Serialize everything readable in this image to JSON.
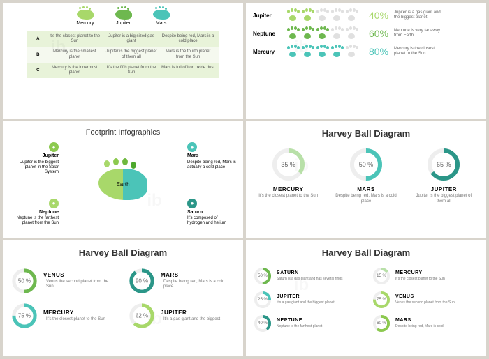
{
  "colors": {
    "green1": "#a8d86a",
    "green2": "#6eb84f",
    "teal": "#4bc4b8",
    "gray": "#d0d0d0"
  },
  "s1": {
    "planets": [
      "Mercury",
      "Jupiter",
      "Mars"
    ],
    "colors": [
      "#a8d86a",
      "#6eb84f",
      "#4bc4b8"
    ],
    "rows": [
      {
        "label": "A",
        "cells": [
          "It's the closest planet to the Sun",
          "Jupiter is a big sized gas giant",
          "Despite being red, Mars is a cold place"
        ]
      },
      {
        "label": "B",
        "cells": [
          "Mercury is the smallest planet",
          "Jupiter is the biggest planet of them all",
          "Mars is the fourth planet from the Sun"
        ]
      },
      {
        "label": "C",
        "cells": [
          "Mercury is the innermost planet",
          "It's the fifth planet from the Sun",
          "Mars is full of iron oxide dust"
        ]
      }
    ]
  },
  "s2": {
    "rows": [
      {
        "name": "Jupiter",
        "pct": 40,
        "pctText": "40%",
        "color": "#a8d86a",
        "desc": "Jupiter is a gas giant and the biggest planet"
      },
      {
        "name": "Neptune",
        "pct": 60,
        "pctText": "60%",
        "color": "#6eb84f",
        "desc": "Neptune is very far away from Earth"
      },
      {
        "name": "Mercury",
        "pct": 80,
        "pctText": "80%",
        "color": "#4bc4b8",
        "desc": "Mercury is the closest planet to the Sun"
      }
    ]
  },
  "s3": {
    "title": "Footprint Infographics",
    "center": "Earth",
    "bg1": "#a8d86a",
    "bg2": "#4bc4b8",
    "callouts": [
      {
        "name": "Jupiter",
        "desc": "Jupiter is the biggest planet in the Solar System",
        "color": "#8cc94f",
        "pos": "tl"
      },
      {
        "name": "Mars",
        "desc": "Despite being red, Mars is actually a cold place",
        "color": "#4bc4b8",
        "pos": "tr"
      },
      {
        "name": "Neptune",
        "desc": "Neptune is the farthest planet from the Sun",
        "color": "#a8d86a",
        "pos": "bl"
      },
      {
        "name": "Saturn",
        "desc": "It's composed of hydrogen and helium",
        "color": "#2b9688",
        "pos": "br"
      }
    ]
  },
  "s4": {
    "title": "Harvey Ball Diagram",
    "items": [
      {
        "pct": 35,
        "pctText": "35 %",
        "name": "MERCURY",
        "desc": "It's the closest planet to the Sun",
        "color": "#b8e0a8"
      },
      {
        "pct": 50,
        "pctText": "50 %",
        "name": "MARS",
        "desc": "Despite being red, Mars is a cold place",
        "color": "#4bc4b8"
      },
      {
        "pct": 65,
        "pctText": "65 %",
        "name": "JUPITER",
        "desc": "Jupiter is the biggest planet of them all",
        "color": "#2b9688"
      }
    ]
  },
  "s5": {
    "title": "Harvey Ball Diagram",
    "items": [
      {
        "pct": 50,
        "pctText": "50 %",
        "name": "VENUS",
        "desc": "Venus the second planet from the Sun",
        "color": "#6eb84f"
      },
      {
        "pct": 90,
        "pctText": "90 %",
        "name": "MARS",
        "desc": "Despite being red, Mars is a cold place",
        "color": "#2b9688"
      },
      {
        "pct": 75,
        "pctText": "75 %",
        "name": "MERCURY",
        "desc": "It's the closest planet to the Sun",
        "color": "#4bc4b8"
      },
      {
        "pct": 62,
        "pctText": "62 %",
        "name": "JUPITER",
        "desc": "It's a gas giant and the biggest",
        "color": "#a8d86a"
      }
    ]
  },
  "s6": {
    "title": "Harvey Ball Diagram",
    "items": [
      {
        "pct": 50,
        "pctText": "50 %",
        "name": "SATURN",
        "desc": "Saturn is a gas giant and has several rings",
        "color": "#6eb84f"
      },
      {
        "pct": 15,
        "pctText": "15 %",
        "name": "MERCURY",
        "desc": "It's the closest planet to the Sun",
        "color": "#b8e0a8"
      },
      {
        "pct": 25,
        "pctText": "25 %",
        "name": "JUPITER",
        "desc": "It's a gas giant and the biggest planet",
        "color": "#4bc4b8"
      },
      {
        "pct": 75,
        "pctText": "75 %",
        "name": "VENUS",
        "desc": "Venus the second planet from the Sun",
        "color": "#a8d86a"
      },
      {
        "pct": 40,
        "pctText": "40 %",
        "name": "NEPTUNE",
        "desc": "Neptune is the farthest planet",
        "color": "#2b9688"
      },
      {
        "pct": 60,
        "pctText": "60 %",
        "name": "MARS",
        "desc": "Despite being red, Mars is cold",
        "color": "#8cc94f"
      }
    ]
  }
}
